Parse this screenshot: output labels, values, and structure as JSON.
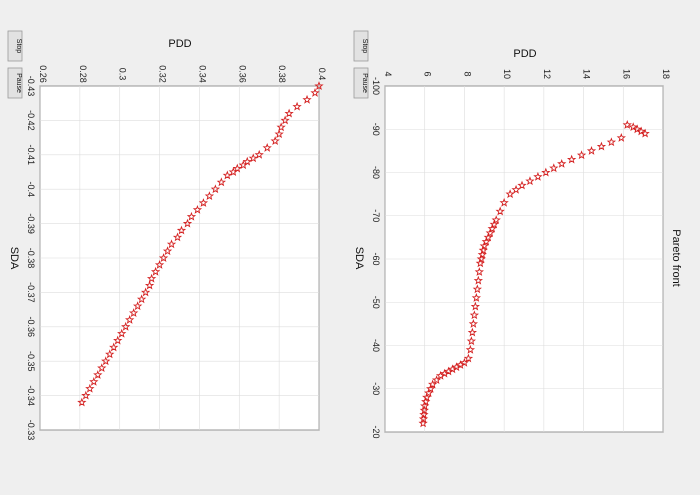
{
  "figure": {
    "buttons": {
      "stop_label": "Stop",
      "pause_label": "Pause"
    },
    "background_color": "#efefef",
    "marker_color": "#d42020",
    "marker_shape": "pentagram-icon"
  },
  "chart_data": [
    {
      "type": "scatter",
      "title": "",
      "xlabel": "SDA",
      "ylabel": "PDD",
      "xlim": [
        -0.43,
        -0.33
      ],
      "ylim": [
        0.26,
        0.4
      ],
      "x_ticks": [
        -0.43,
        -0.42,
        -0.41,
        -0.4,
        -0.39,
        -0.38,
        -0.37,
        -0.36,
        -0.35,
        -0.34,
        -0.33
      ],
      "y_ticks": [
        0.26,
        0.28,
        0.3,
        0.32,
        0.34,
        0.36,
        0.38,
        0.4
      ],
      "x_tick_labels": [
        "-0.43",
        "-0.42",
        "-0.41",
        "-0.4",
        "-0.39",
        "-0.38",
        "-0.37",
        "-0.36",
        "-0.35",
        "-0.34",
        "-0.33"
      ],
      "y_tick_labels": [
        "0.26",
        "0.28",
        "0.3",
        "0.32",
        "0.34",
        "0.36",
        "0.38",
        "0.4"
      ],
      "grid": true,
      "series": [
        {
          "x": [
            -0.43,
            -0.428,
            -0.426,
            -0.424,
            -0.422,
            -0.42,
            -0.418,
            -0.416,
            -0.414,
            -0.412,
            -0.41,
            -0.409,
            -0.408,
            -0.407,
            -0.406,
            -0.405,
            -0.404,
            -0.402,
            -0.4,
            -0.398,
            -0.396,
            -0.394,
            -0.392,
            -0.39,
            -0.388,
            -0.386,
            -0.384,
            -0.382,
            -0.38,
            -0.378,
            -0.376,
            -0.374,
            -0.372,
            -0.37,
            -0.368,
            -0.366,
            -0.364,
            -0.362,
            -0.36,
            -0.358,
            -0.356,
            -0.354,
            -0.352,
            -0.35,
            -0.348,
            -0.346,
            -0.344,
            -0.342,
            -0.34,
            -0.338
          ],
          "y": [
            0.4,
            0.398,
            0.394,
            0.389,
            0.385,
            0.383,
            0.381,
            0.38,
            0.378,
            0.374,
            0.37,
            0.367,
            0.364,
            0.362,
            0.359,
            0.357,
            0.354,
            0.351,
            0.348,
            0.345,
            0.342,
            0.339,
            0.336,
            0.334,
            0.331,
            0.329,
            0.326,
            0.324,
            0.322,
            0.32,
            0.318,
            0.316,
            0.315,
            0.313,
            0.311,
            0.309,
            0.307,
            0.305,
            0.303,
            0.301,
            0.299,
            0.297,
            0.295,
            0.293,
            0.291,
            0.289,
            0.287,
            0.285,
            0.283,
            0.281
          ]
        }
      ]
    },
    {
      "type": "scatter",
      "title": "Pareto front",
      "xlabel": "SDA",
      "ylabel": "PDD",
      "xlim": [
        -100,
        -20
      ],
      "ylim": [
        4,
        18
      ],
      "x_ticks": [
        -100,
        -90,
        -80,
        -70,
        -60,
        -50,
        -40,
        -30,
        -20
      ],
      "y_ticks": [
        4,
        6,
        8,
        10,
        12,
        14,
        16,
        18
      ],
      "x_tick_labels": [
        "-100",
        "-90",
        "-80",
        "-70",
        "-60",
        "-50",
        "-40",
        "-30",
        "-20"
      ],
      "y_tick_labels": [
        "4",
        "6",
        "8",
        "10",
        "12",
        "14",
        "16",
        "18"
      ],
      "grid": true,
      "series": [
        {
          "x": [
            -89,
            -89.5,
            -90,
            -90.5,
            -91,
            -88,
            -87,
            -86,
            -85,
            -84,
            -83,
            -82,
            -81,
            -80,
            -79,
            -78,
            -77,
            -76,
            -75,
            -73,
            -71,
            -69,
            -68,
            -67,
            -66,
            -65,
            -64,
            -63,
            -62,
            -61,
            -60,
            -59,
            -57,
            -55,
            -53,
            -51,
            -49,
            -47,
            -45,
            -43,
            -41,
            -39,
            -37,
            -36,
            -35.5,
            -35,
            -34.5,
            -34,
            -33.5,
            -33,
            -32,
            -31,
            -30,
            -29,
            -28,
            -27,
            -26,
            -25,
            -24,
            -23,
            -22
          ],
          "y": [
            17.1,
            16.9,
            16.7,
            16.5,
            16.2,
            15.9,
            15.4,
            14.9,
            14.4,
            13.9,
            13.4,
            12.9,
            12.5,
            12.1,
            11.7,
            11.3,
            10.9,
            10.6,
            10.3,
            10.0,
            9.8,
            9.6,
            9.5,
            9.4,
            9.3,
            9.2,
            9.1,
            9.0,
            8.95,
            8.9,
            8.85,
            8.8,
            8.75,
            8.7,
            8.65,
            8.6,
            8.55,
            8.5,
            8.45,
            8.4,
            8.35,
            8.3,
            8.2,
            8.0,
            7.8,
            7.6,
            7.4,
            7.2,
            7.0,
            6.8,
            6.6,
            6.4,
            6.3,
            6.2,
            6.1,
            6.05,
            6.0,
            5.98,
            5.96,
            5.94,
            5.92
          ]
        }
      ]
    }
  ]
}
